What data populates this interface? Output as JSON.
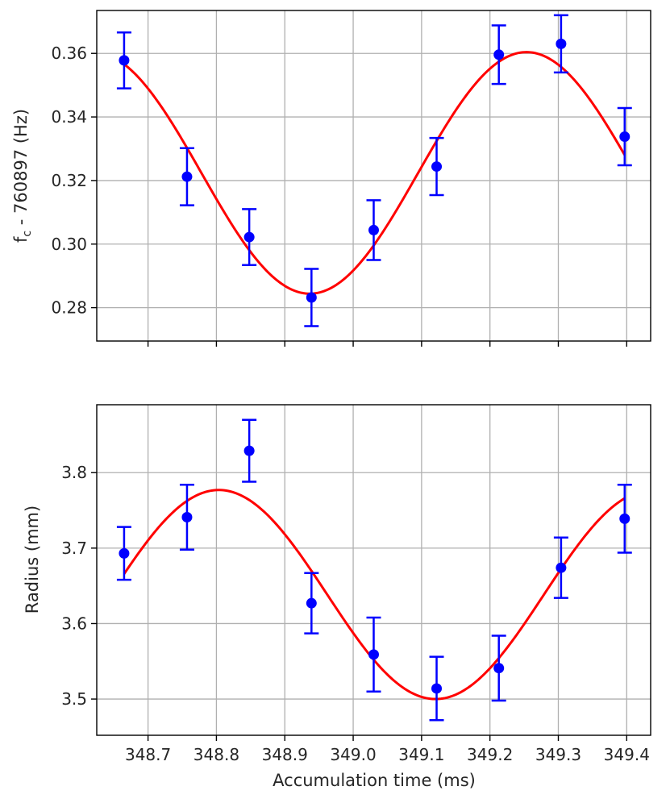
{
  "chart_data": [
    {
      "type": "scatter",
      "xlabel": "",
      "ylabel": "f_c - 760897 (Hz)",
      "ylabel_main": "f",
      "ylabel_sub": "c",
      "ylabel_rest": " - 760897 (Hz)",
      "xlim": [
        348.625,
        349.435
      ],
      "ylim": [
        0.2695,
        0.3735
      ],
      "yticks": [
        0.28,
        0.3,
        0.32,
        0.34,
        0.36
      ],
      "ytick_labels": [
        "0.28",
        "0.30",
        "0.32",
        "0.34",
        "0.36"
      ],
      "xticks": [
        348.7,
        348.8,
        348.9,
        349.0,
        349.1,
        349.2,
        349.3,
        349.4
      ],
      "grid": true,
      "series": [
        {
          "kind": "errorbar",
          "color": "#0000ff",
          "x": [
            348.665,
            348.757,
            348.848,
            348.939,
            349.03,
            349.122,
            349.213,
            349.304,
            349.397
          ],
          "y": [
            0.3578,
            0.3212,
            0.3022,
            0.2832,
            0.3044,
            0.3244,
            0.3596,
            0.363,
            0.3338
          ],
          "yerr": [
            0.0088,
            0.009,
            0.0088,
            0.009,
            0.0094,
            0.009,
            0.0092,
            0.009,
            0.009
          ]
        },
        {
          "kind": "fit",
          "color": "#ff0000",
          "model": "sine",
          "offset": 0.3224,
          "amplitude": 0.038,
          "period": 0.634,
          "peak_x": 349.2535,
          "x_range": [
            348.665,
            349.397
          ]
        }
      ]
    },
    {
      "type": "scatter",
      "xlabel": "Accumulation time (ms)",
      "ylabel": "Radius (mm)",
      "xlim": [
        348.625,
        349.435
      ],
      "ylim": [
        3.452,
        3.89
      ],
      "yticks": [
        3.5,
        3.6,
        3.7,
        3.8
      ],
      "ytick_labels": [
        "3.5",
        "3.6",
        "3.7",
        "3.8"
      ],
      "xticks": [
        348.7,
        348.8,
        348.9,
        349.0,
        349.1,
        349.2,
        349.3,
        349.4
      ],
      "xtick_labels": [
        "348.7",
        "348.8",
        "348.9",
        "349.0",
        "349.1",
        "349.2",
        "349.3",
        "349.4"
      ],
      "grid": true,
      "series": [
        {
          "kind": "errorbar",
          "color": "#0000ff",
          "x": [
            348.665,
            348.757,
            348.848,
            348.939,
            349.03,
            349.122,
            349.213,
            349.304,
            349.397
          ],
          "y": [
            3.693,
            3.741,
            3.829,
            3.627,
            3.559,
            3.514,
            3.541,
            3.674,
            3.739
          ],
          "yerr": [
            0.035,
            0.043,
            0.041,
            0.04,
            0.049,
            0.042,
            0.043,
            0.04,
            0.045
          ]
        },
        {
          "kind": "fit",
          "color": "#ff0000",
          "model": "sine",
          "offset": 3.6385,
          "amplitude": 0.1385,
          "period": 0.634,
          "peak_x": 348.8035,
          "x_range": [
            348.665,
            349.397
          ]
        }
      ]
    }
  ]
}
